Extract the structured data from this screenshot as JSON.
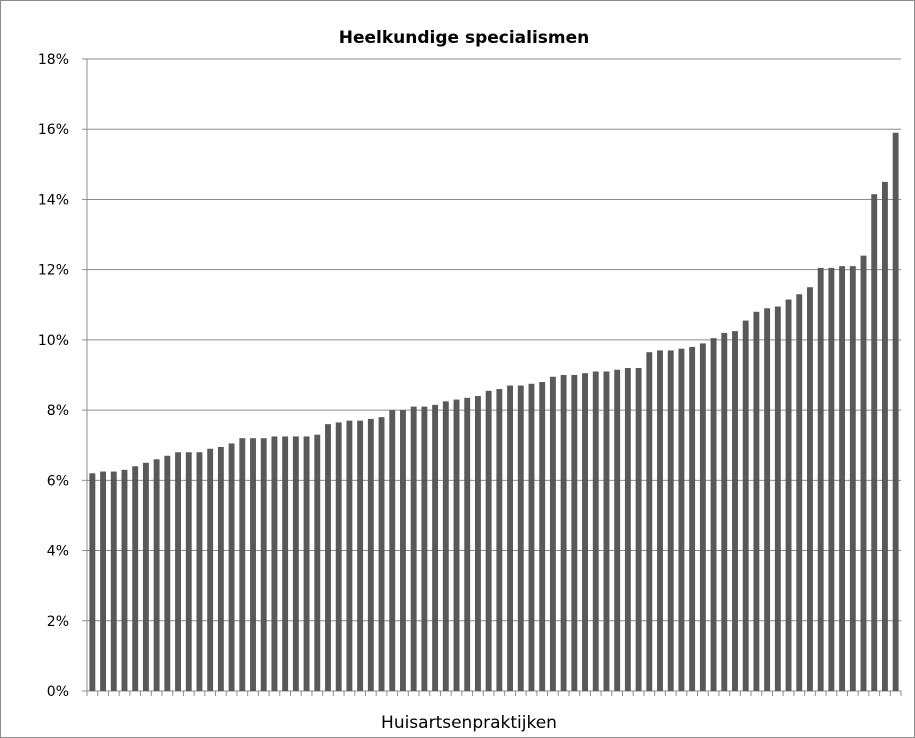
{
  "chart_data": {
    "type": "bar",
    "title": "Heelkundige specialismen",
    "xlabel": "Huisartsenpraktijken",
    "ylabel": "",
    "ylim": [
      0,
      18
    ],
    "y_unit": "%",
    "y_ticks": [
      "0%",
      "2%",
      "4%",
      "6%",
      "8%",
      "10%",
      "12%",
      "14%",
      "16%",
      "18%"
    ],
    "grid": "horizontal",
    "legend": "none",
    "bar_color": "#595959",
    "values": [
      6.2,
      6.25,
      6.25,
      6.3,
      6.4,
      6.5,
      6.6,
      6.7,
      6.8,
      6.8,
      6.8,
      6.9,
      6.95,
      7.05,
      7.2,
      7.2,
      7.2,
      7.25,
      7.25,
      7.25,
      7.25,
      7.3,
      7.6,
      7.65,
      7.7,
      7.7,
      7.75,
      7.8,
      8.0,
      8.0,
      8.1,
      8.1,
      8.15,
      8.25,
      8.3,
      8.35,
      8.4,
      8.55,
      8.6,
      8.7,
      8.7,
      8.75,
      8.8,
      8.95,
      9.0,
      9.0,
      9.05,
      9.1,
      9.1,
      9.15,
      9.2,
      9.2,
      9.65,
      9.7,
      9.7,
      9.75,
      9.8,
      9.9,
      10.05,
      10.2,
      10.25,
      10.55,
      10.8,
      10.9,
      10.95,
      11.15,
      11.3,
      11.5,
      12.05,
      12.05,
      12.1,
      12.1,
      12.4,
      14.15,
      14.5,
      15.9
    ]
  }
}
